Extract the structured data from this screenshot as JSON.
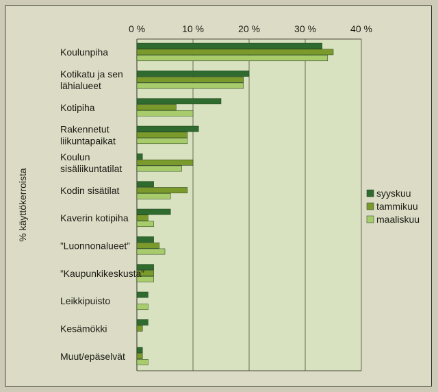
{
  "chart_data": {
    "type": "bar",
    "orientation": "horizontal",
    "ylabel": "% käyttökerroista",
    "xlim": [
      0,
      40
    ],
    "xticks": [
      "0 %",
      "10 %",
      "20 %",
      "30 %",
      "40 %"
    ],
    "grid": true,
    "legend_position": "right",
    "categories": [
      "Koulunpiha",
      "Kotikatu ja sen lähialueet",
      "Kotipiha",
      "Rakennetut liikuntapaikat",
      "Koulun sisäliikuntatilat",
      "Kodin sisätilat",
      "Kaverin kotipiha",
      "”Luonnonalueet”",
      "”Kaupunkikeskusta”",
      "Leikkipuisto",
      "Kesämökki",
      "Muut/epäselvät"
    ],
    "category_lines": [
      [
        "Koulunpiha"
      ],
      [
        "Kotikatu ja sen",
        "lähialueet"
      ],
      [
        "Kotipiha"
      ],
      [
        "Rakennetut",
        "liikuntapaikat"
      ],
      [
        "Koulun",
        "sisäliikuntatilat"
      ],
      [
        "Kodin sisätilat"
      ],
      [
        "Kaverin kotipiha"
      ],
      [
        "”Luonnonalueet”"
      ],
      [
        "”Kaupunkikeskusta”"
      ],
      [
        "Leikkipuisto"
      ],
      [
        "Kesämökki"
      ],
      [
        "Muut/epäselvät"
      ]
    ],
    "series": [
      {
        "name": "syyskuu",
        "color": "#2f6b2e",
        "values": [
          33,
          20,
          15,
          11,
          1,
          3,
          6,
          3,
          3,
          2,
          2,
          1
        ]
      },
      {
        "name": "tammikuu",
        "color": "#7a9b2c",
        "values": [
          35,
          19,
          7,
          9,
          10,
          9,
          2,
          4,
          3,
          0,
          1,
          1
        ]
      },
      {
        "name": "maaliskuu",
        "color": "#a8cc6c",
        "values": [
          34,
          19,
          10,
          9,
          8,
          6,
          3,
          5,
          3,
          2,
          0,
          2
        ]
      }
    ]
  }
}
